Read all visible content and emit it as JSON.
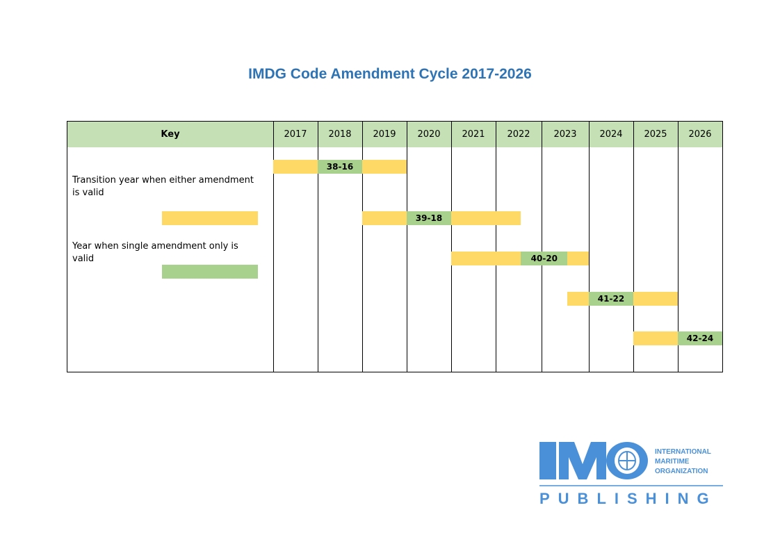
{
  "title": "IMDG Code Amendment Cycle 2017-2026",
  "colors": {
    "title": "#2e74b5",
    "header": "#c5e0b4",
    "transition": "#ffd966",
    "single": "#a9d18e",
    "logo": "#4a90d9"
  },
  "key": {
    "header": "Key",
    "transition_label": "Transition year when either amendment is valid",
    "single_label": "Year when single amendment only is valid"
  },
  "chart_data": {
    "type": "table",
    "title": "IMDG Code Amendment Cycle 2017-2026",
    "years": [
      "2017",
      "2018",
      "2019",
      "2020",
      "2021",
      "2022",
      "2023",
      "2024",
      "2025",
      "2026"
    ],
    "series": [
      {
        "name": "38-16",
        "transition_start": 2017,
        "single_start": 2018,
        "single_end": 2019,
        "transition_end": 2020
      },
      {
        "name": "39-18",
        "transition_start": 2019,
        "single_start": 2020,
        "single_end": 2021,
        "transition_end": 2022.55
      },
      {
        "name": "40-20",
        "transition_start": 2021,
        "single_start": 2022.55,
        "single_end": 2023.55,
        "transition_end": 2024
      },
      {
        "name": "41-22",
        "transition_start": 2023.55,
        "single_start": 2024,
        "single_end": 2025,
        "transition_end": 2026
      },
      {
        "name": "42-24",
        "transition_start": 2025,
        "single_start": 2026,
        "single_end": 2027,
        "transition_end": 2027
      }
    ]
  },
  "logo": {
    "brand": "IMO",
    "line1": "INTERNATIONAL",
    "line2": "MARITIME",
    "line3": "ORGANIZATION",
    "publishing": "PUBLISHING"
  }
}
